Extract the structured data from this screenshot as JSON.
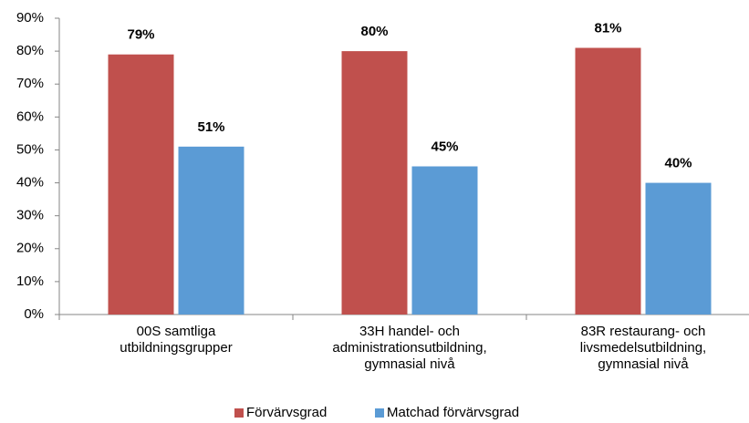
{
  "chart_data": {
    "type": "bar",
    "categories": [
      "00S samtliga\nutbildningsgrupper",
      "33H handel- och\nadministrationsutbildning,\ngymnasial nivå",
      "83R restaurang- och\nlivsmedelsutbildning,\ngymnasial nivå"
    ],
    "series": [
      {
        "name": "Förvärvsgrad",
        "color": "#c0504d",
        "values": [
          79,
          80,
          81
        ],
        "value_labels": [
          "79%",
          "80%",
          "81%"
        ]
      },
      {
        "name": "Matchad förvärvsgrad",
        "color": "#5b9bd5",
        "values": [
          51,
          45,
          40
        ],
        "value_labels": [
          "51%",
          "45%",
          "40%"
        ]
      }
    ],
    "ylim": [
      0,
      90
    ],
    "yticks": [
      {
        "value": 0,
        "label": "0%"
      },
      {
        "value": 10,
        "label": "10%"
      },
      {
        "value": 20,
        "label": "20%"
      },
      {
        "value": 30,
        "label": "30%"
      },
      {
        "value": 40,
        "label": "40%"
      },
      {
        "value": 50,
        "label": "50%"
      },
      {
        "value": 60,
        "label": "60%"
      },
      {
        "value": 70,
        "label": "70%"
      },
      {
        "value": 80,
        "label": "80%"
      },
      {
        "value": 90,
        "label": "90%"
      }
    ],
    "legend": "bottom"
  }
}
